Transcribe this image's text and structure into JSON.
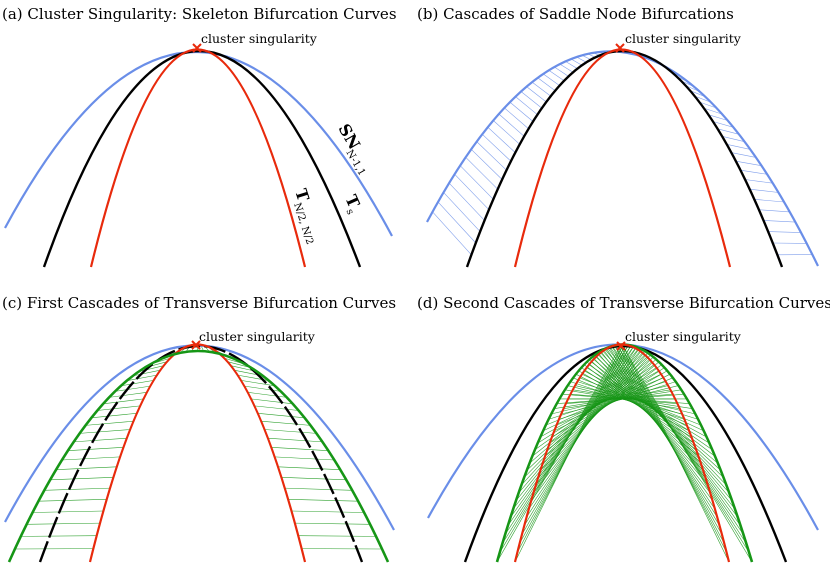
{
  "colors": {
    "sn": "#6a8ee8",
    "t_s": "#000000",
    "t_n2": "#e82a0c",
    "transverse": "#169616",
    "saddle_hatch": "#6a8ee8",
    "singularity": "#e82a0c"
  },
  "panels": [
    {
      "id": "a",
      "title": "(a) Cluster Singularity: Skeleton Bifurcation Curves",
      "singularity_label": "cluster singularity",
      "labels": {
        "sn_main": "SN",
        "sn_sub": "N-1,1",
        "ts_main": "T",
        "ts_sub": "s",
        "tn_main": "T",
        "tn_sub": "N/2, N/2"
      }
    },
    {
      "id": "b",
      "title": "(b)           Cascades of Saddle Node Bifurcations",
      "singularity_label": "cluster singularity"
    },
    {
      "id": "c",
      "title": "(c) First Cascades of Transverse Bifurcation Curves",
      "singularity_label": "cluster singularity"
    },
    {
      "id": "d",
      "title": "(d) Second Cascades of Transverse Bifurcation Curves",
      "singularity_label": "cluster singularity"
    }
  ]
}
